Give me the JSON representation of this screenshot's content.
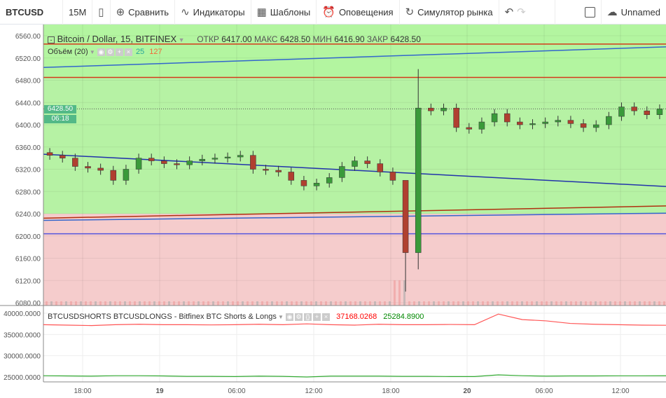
{
  "toolbar": {
    "symbol": "BTCUSD",
    "interval": "15M",
    "compare": "Сравнить",
    "indicators": "Индикаторы",
    "templates": "Шаблоны",
    "alerts": "Оповещения",
    "replay": "Симулятор рынка",
    "layout": "Unnamed"
  },
  "legend": {
    "title": "Bitcoin / Dollar, 15, BITFINEX",
    "open_label": "ОТКР",
    "open": "6417.00",
    "high_label": "МАКС",
    "high": "6428.50",
    "low_label": "МИН",
    "low": "6416.90",
    "close_label": "ЗАКР",
    "close": "6428.50"
  },
  "volume": {
    "label": "Объём (20)",
    "v1": "25",
    "v2": "127"
  },
  "last_price": {
    "price": "6428.50",
    "countdown": "06:18"
  },
  "lower": {
    "title": "BTCUSDSHORTS BTCUSDLONGS - Bitfinex BTC Shorts & Longs",
    "shorts": "37168.0268",
    "longs": "25284.8900"
  },
  "colors": {
    "up": "#53b987",
    "down": "#eb4d5c",
    "zone_up": "#b6f2a4",
    "zone_down": "#f5cccc",
    "shorts": "#f55",
    "longs": "#3a3"
  },
  "chart_data": {
    "type": "candlestick",
    "price_ticks": [
      "6560.00",
      "6520.00",
      "6480.00",
      "6440.00",
      "6400.00",
      "6360.00",
      "6320.00",
      "6280.00",
      "6240.00",
      "6200.00",
      "6160.00",
      "6120.00",
      "6080.00"
    ],
    "lower_ticks": [
      "40000.0000",
      "35000.0000",
      "30000.0000",
      "25000.0000"
    ],
    "time_ticks": [
      "18:00",
      "19",
      "06:00",
      "12:00",
      "18:00",
      "20",
      "06:00",
      "12:00"
    ],
    "closes": [
      6345,
      6340,
      6325,
      6322,
      6318,
      6300,
      6320,
      6340,
      6335,
      6330,
      6328,
      6335,
      6338,
      6340,
      6342,
      6345,
      6320,
      6318,
      6315,
      6300,
      6290,
      6295,
      6305,
      6325,
      6335,
      6330,
      6315,
      6300,
      6170,
      6430,
      6425,
      6430,
      6395,
      6392,
      6405,
      6420,
      6405,
      6400,
      6402,
      6405,
      6408,
      6402,
      6395,
      6400,
      6415,
      6432,
      6425,
      6418,
      6428.5
    ],
    "spike": {
      "28": {
        "h": 6230,
        "l": 6100
      },
      "29": {
        "h": 6500,
        "l": 6140
      }
    },
    "lines": [
      {
        "color": "#d43a1a",
        "from": 6545,
        "to": 6545
      },
      {
        "color": "#d43a1a",
        "from": 6485,
        "to": 6485
      },
      {
        "color": "#3366cc",
        "from": 6503,
        "to": 6540
      },
      {
        "color": "#2233aa",
        "from": 6347,
        "to": 6289
      },
      {
        "color": "#b03010",
        "from": 6232,
        "to": 6254
      },
      {
        "color": "#3366cc",
        "from": 6228,
        "to": 6241
      },
      {
        "color": "#5555dd",
        "from": 6204,
        "to": 6204
      }
    ],
    "zone_split": 6240,
    "shorts": [
      37300,
      37200,
      37100,
      37300,
      37400,
      37300,
      37300,
      37250,
      37300,
      37400,
      37300,
      37500,
      37300,
      37200,
      37400,
      37300,
      37300,
      37350,
      37300,
      39800,
      38500,
      38200,
      37600,
      37400,
      37300,
      37200,
      37168
    ],
    "longs": [
      25300,
      25250,
      25200,
      25300,
      25300,
      25250,
      25150,
      25150,
      25100,
      25200,
      25150,
      25000,
      25200,
      25200,
      25200,
      25150,
      25150,
      25100,
      25100,
      25500,
      25300,
      25200,
      25250,
      25250,
      25280,
      25280,
      25285
    ]
  }
}
